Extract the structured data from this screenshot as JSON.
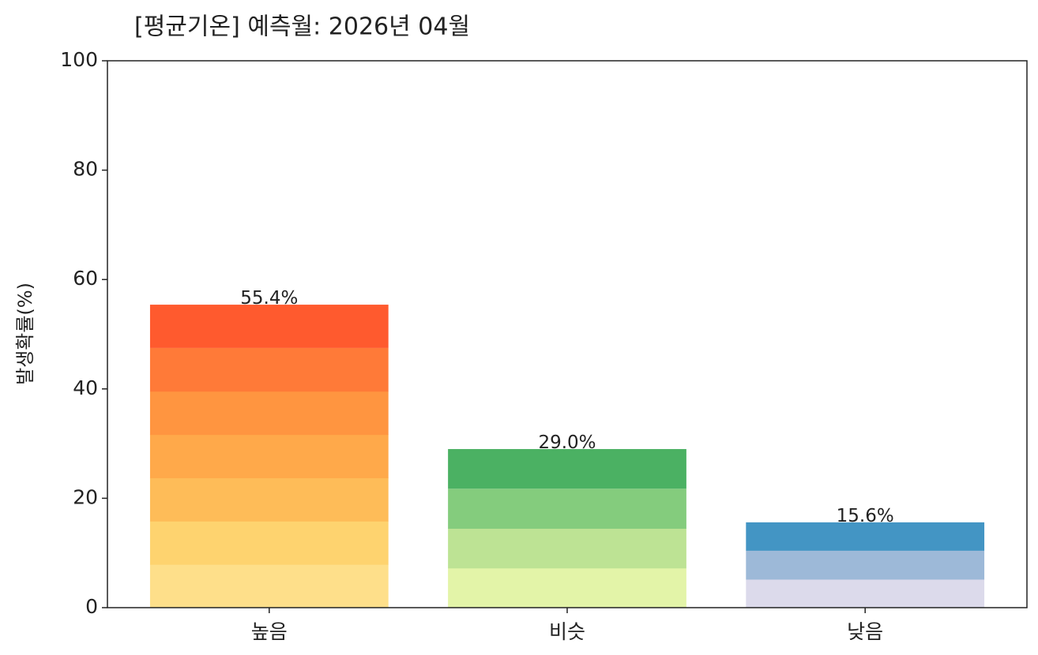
{
  "chart_data": {
    "type": "bar",
    "title": "[평균기온] 예측월: 2026년 04월",
    "ylabel": "발생확률(%)",
    "categories": [
      "높음",
      "비슷",
      "낮음"
    ],
    "values": [
      55.4,
      29.0,
      15.6
    ],
    "value_labels": [
      "55.4%",
      "29.0%",
      "15.6%"
    ],
    "segment_colors": [
      [
        "#fedf8a",
        "#fed36f",
        "#febc58",
        "#ffa94a",
        "#ff9540",
        "#ff7a38",
        "#ff5a2e"
      ],
      [
        "#e3f4a8",
        "#bde394",
        "#84cc7d",
        "#4bb163"
      ],
      [
        "#dcdaeb",
        "#9db9d8",
        "#4395c4"
      ]
    ],
    "ylim": [
      0,
      100
    ],
    "yticks": [
      0,
      20,
      40,
      60,
      80,
      100
    ],
    "grid": false
  }
}
